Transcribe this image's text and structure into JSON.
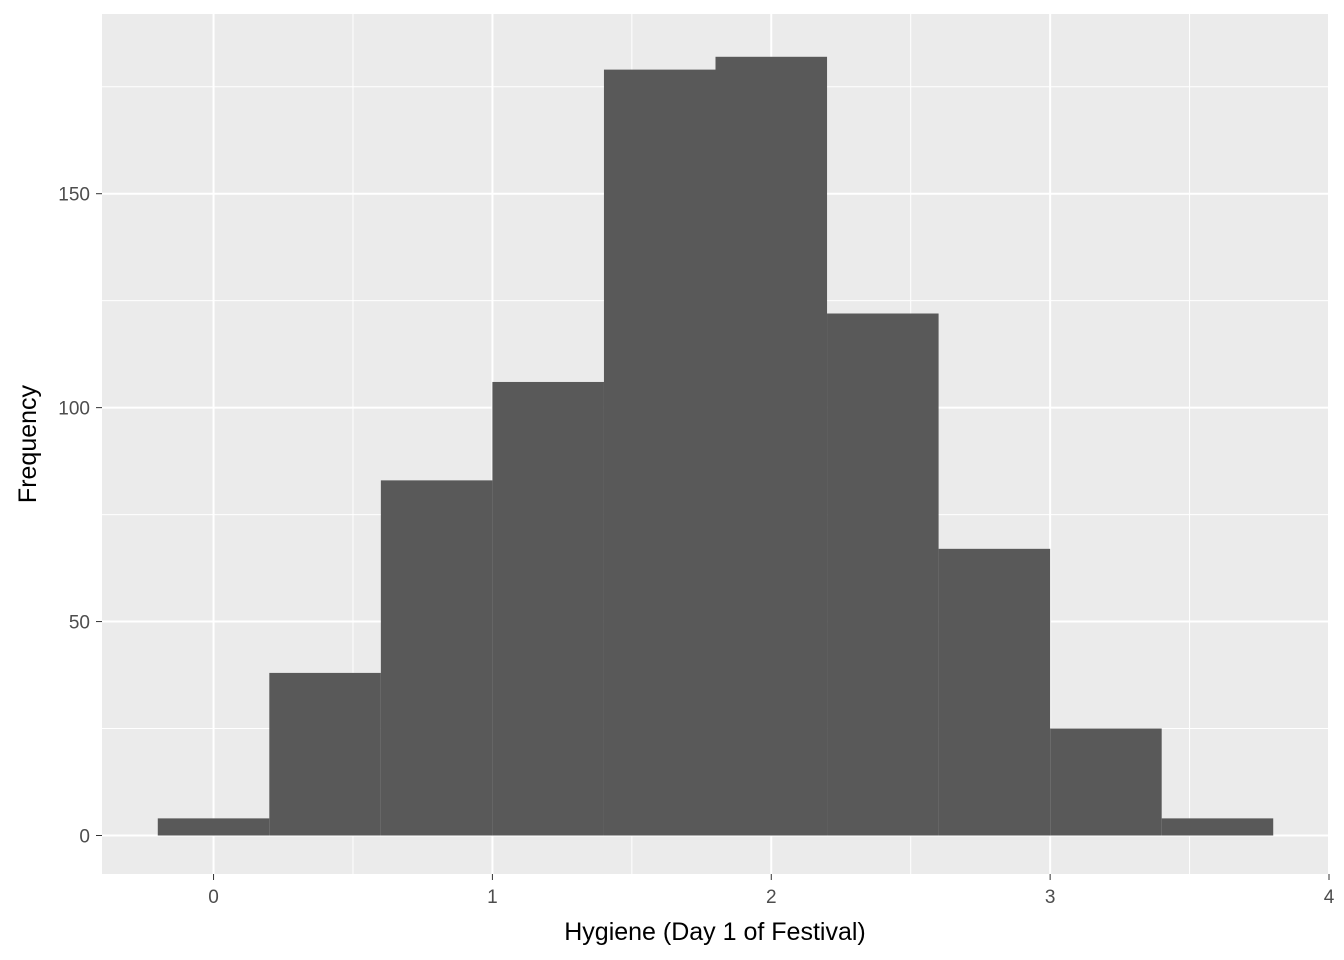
{
  "chart_data": {
    "type": "bar",
    "subtype": "histogram",
    "xlabel": "Hygiene (Day 1 of Festival)",
    "ylabel": "Frequency",
    "xlim": [
      -0.4,
      4
    ],
    "ylim": [
      -9,
      192
    ],
    "x_ticks": [
      0,
      1,
      2,
      3,
      4
    ],
    "x_tick_labels": [
      "0",
      "1",
      "2",
      "3",
      "4"
    ],
    "x_minor_breaks": [
      0.5,
      1.5,
      2.5,
      3.5
    ],
    "y_ticks": [
      0,
      50,
      100,
      150
    ],
    "y_tick_labels": [
      "0",
      "50",
      "100",
      "150"
    ],
    "y_minor_breaks": [
      25,
      75,
      125,
      175
    ],
    "bins": [
      {
        "x0": -0.2,
        "x1": 0.2,
        "count": 4
      },
      {
        "x0": 0.2,
        "x1": 0.6,
        "count": 38
      },
      {
        "x0": 0.6,
        "x1": 1.0,
        "count": 83
      },
      {
        "x0": 1.0,
        "x1": 1.4,
        "count": 106
      },
      {
        "x0": 1.4,
        "x1": 1.8,
        "count": 179
      },
      {
        "x0": 1.8,
        "x1": 2.2,
        "count": 182
      },
      {
        "x0": 2.2,
        "x1": 2.6,
        "count": 122
      },
      {
        "x0": 2.6,
        "x1": 3.0,
        "count": 67
      },
      {
        "x0": 3.0,
        "x1": 3.4,
        "count": 25
      },
      {
        "x0": 3.4,
        "x1": 3.8,
        "count": 4
      }
    ],
    "grid": true,
    "colors": {
      "panel_background": "#ebebeb",
      "grid": "#ffffff",
      "bar_fill": "#595959",
      "tick": "#333333",
      "tick_label": "#4d4d4d"
    }
  }
}
